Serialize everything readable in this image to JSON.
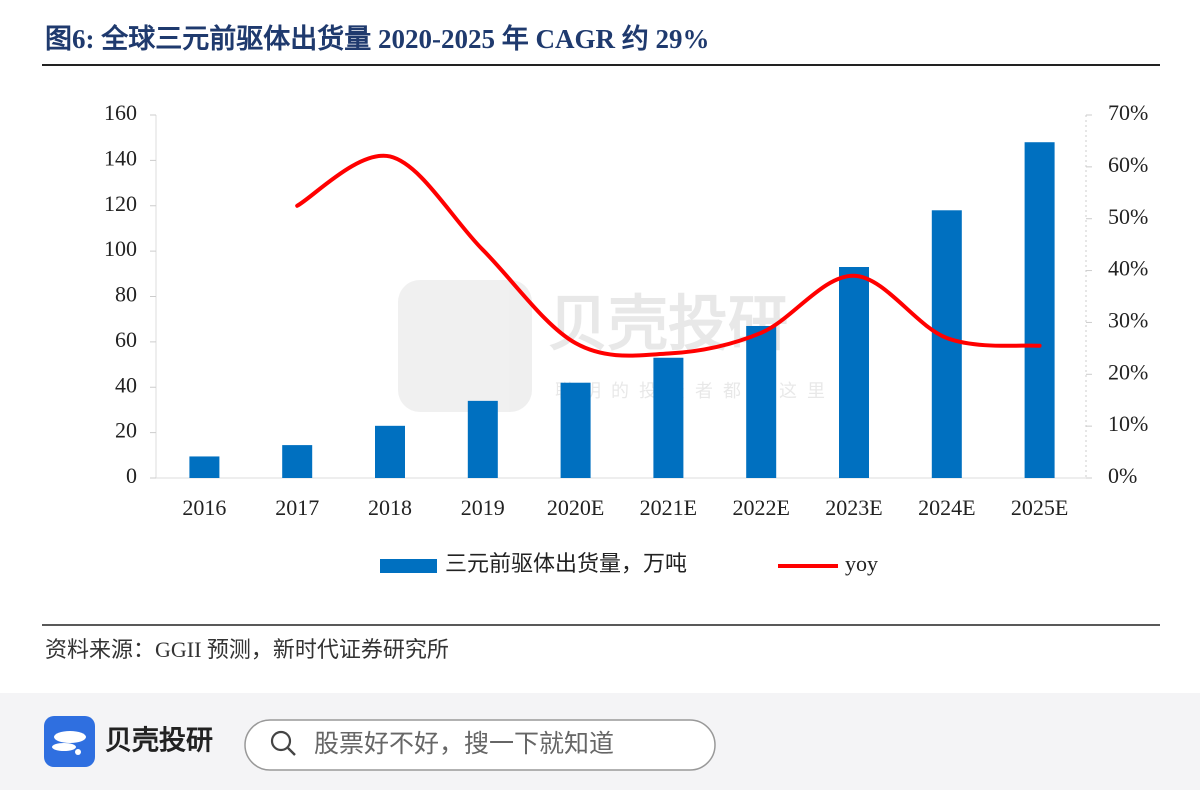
{
  "chart_data": {
    "type": "bar",
    "title": "图6:   全球三元前驱体出货量 2020-2025 年 CAGR 约 29%",
    "categories": [
      "2016",
      "2017",
      "2018",
      "2019",
      "2020E",
      "2021E",
      "2022E",
      "2023E",
      "2024E",
      "2025E"
    ],
    "series": [
      {
        "name": "三元前驱体出货量，万吨",
        "type": "bar",
        "color": "#0070c0",
        "values": [
          9.5,
          14.5,
          23,
          34,
          42,
          53,
          67,
          93,
          118,
          148
        ]
      },
      {
        "name": "yoy",
        "type": "line",
        "axis": "y2",
        "color": "#ff0000",
        "values": [
          null,
          52.5,
          62,
          44,
          26,
          24,
          28,
          39,
          27,
          25.5
        ]
      }
    ],
    "ylim": [
      0,
      160
    ],
    "yticks": [
      0,
      20,
      40,
      60,
      80,
      100,
      120,
      140,
      160
    ],
    "y2lim": [
      0,
      70
    ],
    "y2ticks": [
      {
        "value": 0,
        "label": "0%"
      },
      {
        "value": 10,
        "label": "10%"
      },
      {
        "value": 20,
        "label": "20%"
      },
      {
        "value": 30,
        "label": "30%"
      },
      {
        "value": 40,
        "label": "40%"
      },
      {
        "value": 50,
        "label": "50%"
      },
      {
        "value": 60,
        "label": "60%"
      },
      {
        "value": 70,
        "label": "70%"
      }
    ],
    "legend": "bottom",
    "source": "资料来源：GGII 预测，新时代证券研究所"
  },
  "watermark": {
    "brand": "贝壳投研",
    "slogan": "聪明的投资者都在这里"
  },
  "app": {
    "brand": "贝壳投研",
    "search_placeholder": "股票好不好，搜一下就知道"
  }
}
